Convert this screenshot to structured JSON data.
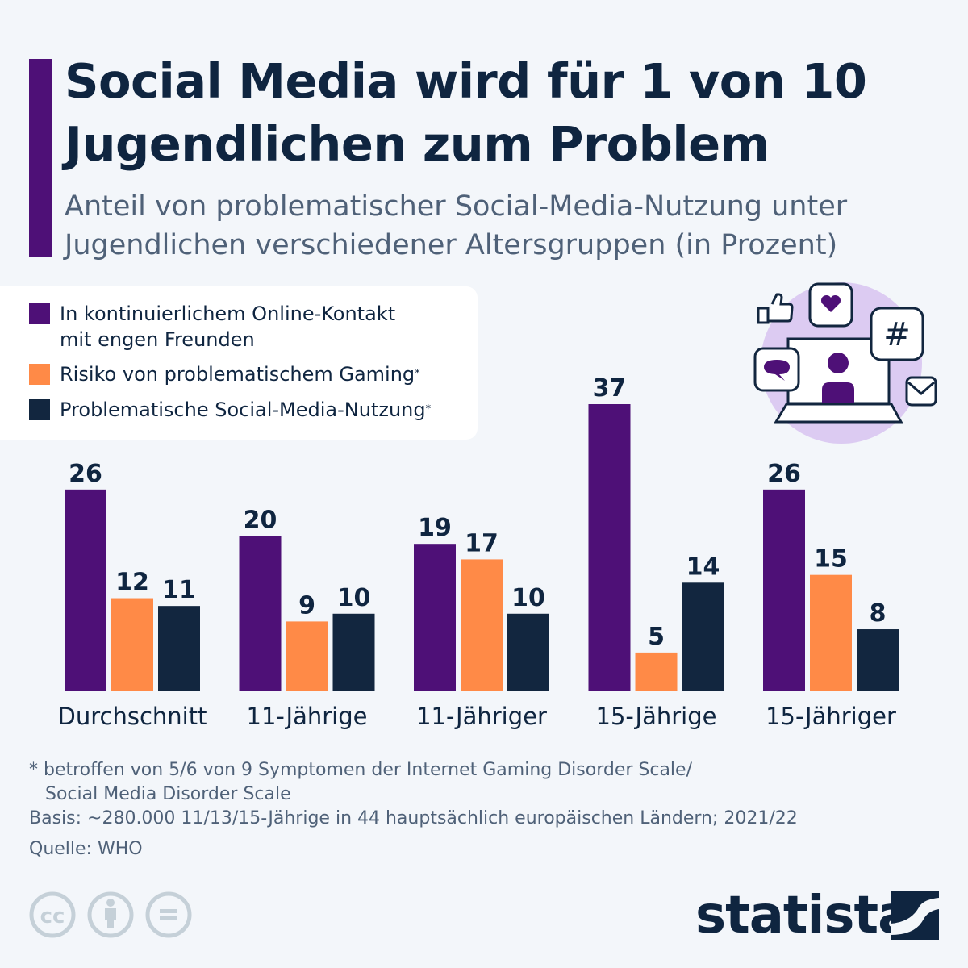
{
  "title": "Social Media wird für 1 von 10 Jugendlichen zum Problem",
  "subtitle": "Anteil von problematischer Social-Media-Nutzung unter Jugendlichen verschiedener Altersgruppen (in Prozent)",
  "chart_data": {
    "type": "bar",
    "categories": [
      "Durchschnitt",
      "11-Jährige",
      "11-Jähriger",
      "15-Jährige",
      "15-Jähriger"
    ],
    "series": [
      {
        "name": "In kontinuierlichem Online-Kontakt mit engen Freunden",
        "color": "#4e1077",
        "values": [
          26,
          20,
          19,
          37,
          26
        ]
      },
      {
        "name": "Risiko von problematischem Gaming",
        "marker": "*",
        "color": "#ff8a47",
        "values": [
          12,
          9,
          17,
          5,
          15
        ]
      },
      {
        "name": "Problematische Social-Media-Nutzung",
        "marker": "*",
        "color": "#12263f",
        "values": [
          11,
          10,
          10,
          14,
          8
        ]
      }
    ],
    "ylim": [
      0,
      37
    ],
    "grid": false,
    "legend": "top-left",
    "data_labels": true
  },
  "footnotes": {
    "note1": "* betroffen von 5/6 von 9 Symptomen der Internet Gaming Disorder Scale/",
    "note2": "Social Media Disorder Scale",
    "basis": "Basis: ~280.000 11/13/15-Jährige in 44 hauptsächlich europäischen Ländern; 2021/22",
    "source": "Quelle: WHO"
  },
  "brand": "statista",
  "icons": [
    "social-media-laptop-illustration",
    "cc-icon",
    "by-icon",
    "nd-icon",
    "statista-logo-icon"
  ]
}
